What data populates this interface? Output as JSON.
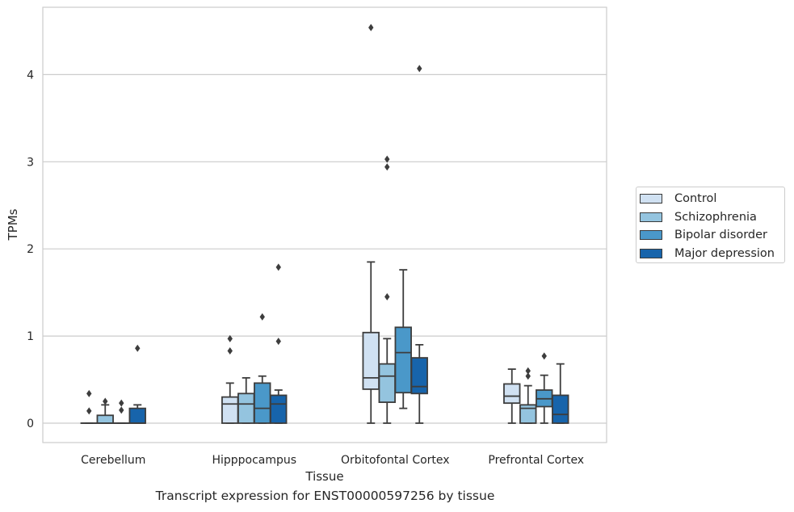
{
  "chart_data": {
    "type": "box",
    "caption": "Transcript expression for ENST00000597256 by tissue",
    "xlabel": "Tissue",
    "ylabel": "TPMs",
    "ylim": [
      -0.22,
      4.8
    ],
    "yticks": [
      "0",
      "1",
      "2",
      "3",
      "4"
    ],
    "grid": "horizontal",
    "legend_position": "right",
    "categories": [
      "Cerebellum",
      "Hipppocampus",
      "Orbitofontal Cortex",
      "Prefrontal Cortex"
    ],
    "series": [
      {
        "name": "Control",
        "color": "#d0e1f2",
        "boxes": [
          {
            "whisker_low": 0,
            "q1": 0,
            "median": 0,
            "q3": 0,
            "whisker_high": 0,
            "outliers": [
              0.34,
              0.14
            ]
          },
          {
            "whisker_low": 0,
            "q1": 0,
            "median": 0.22,
            "q3": 0.3,
            "whisker_high": 0.46,
            "outliers": [
              0.97,
              0.83
            ]
          },
          {
            "whisker_low": 0,
            "q1": 0.39,
            "median": 0.52,
            "q3": 1.04,
            "whisker_high": 1.85,
            "outliers": [
              4.54
            ]
          },
          {
            "whisker_low": 0,
            "q1": 0.23,
            "median": 0.31,
            "q3": 0.45,
            "whisker_high": 0.62,
            "outliers": []
          }
        ]
      },
      {
        "name": "Schizophrenia",
        "color": "#94c4df",
        "boxes": [
          {
            "whisker_low": 0,
            "q1": 0,
            "median": 0,
            "q3": 0.09,
            "whisker_high": 0.21,
            "outliers": [
              0.25
            ]
          },
          {
            "whisker_low": 0,
            "q1": 0,
            "median": 0.22,
            "q3": 0.34,
            "whisker_high": 0.52,
            "outliers": []
          },
          {
            "whisker_low": 0,
            "q1": 0.24,
            "median": 0.54,
            "q3": 0.68,
            "whisker_high": 0.97,
            "outliers": [
              1.45,
              3.03,
              2.94
            ]
          },
          {
            "whisker_low": 0,
            "q1": 0,
            "median": 0.17,
            "q3": 0.21,
            "whisker_high": 0.43,
            "outliers": [
              0.6,
              0.54
            ]
          }
        ]
      },
      {
        "name": "Bipolar disorder",
        "color": "#4a98c9",
        "boxes": [
          {
            "whisker_low": 0,
            "q1": 0,
            "median": 0,
            "q3": 0,
            "whisker_high": 0,
            "outliers": [
              0.23,
              0.15
            ]
          },
          {
            "whisker_low": 0,
            "q1": 0,
            "median": 0.17,
            "q3": 0.46,
            "whisker_high": 0.54,
            "outliers": [
              1.22
            ]
          },
          {
            "whisker_low": 0.17,
            "q1": 0.35,
            "median": 0.81,
            "q3": 1.1,
            "whisker_high": 1.76,
            "outliers": []
          },
          {
            "whisker_low": 0,
            "q1": 0.19,
            "median": 0.28,
            "q3": 0.38,
            "whisker_high": 0.55,
            "outliers": [
              0.77
            ]
          }
        ]
      },
      {
        "name": "Major depression",
        "color": "#1764ab",
        "boxes": [
          {
            "whisker_low": 0,
            "q1": 0,
            "median": 0,
            "q3": 0.17,
            "whisker_high": 0.21,
            "outliers": [
              0.86
            ]
          },
          {
            "whisker_low": 0,
            "q1": 0,
            "median": 0.22,
            "q3": 0.32,
            "whisker_high": 0.38,
            "outliers": [
              1.79,
              0.94
            ]
          },
          {
            "whisker_low": 0,
            "q1": 0.34,
            "median": 0.42,
            "q3": 0.75,
            "whisker_high": 0.9,
            "outliers": [
              4.07
            ]
          },
          {
            "whisker_low": 0,
            "q1": 0,
            "median": 0.1,
            "q3": 0.32,
            "whisker_high": 0.68,
            "outliers": []
          }
        ]
      }
    ]
  }
}
